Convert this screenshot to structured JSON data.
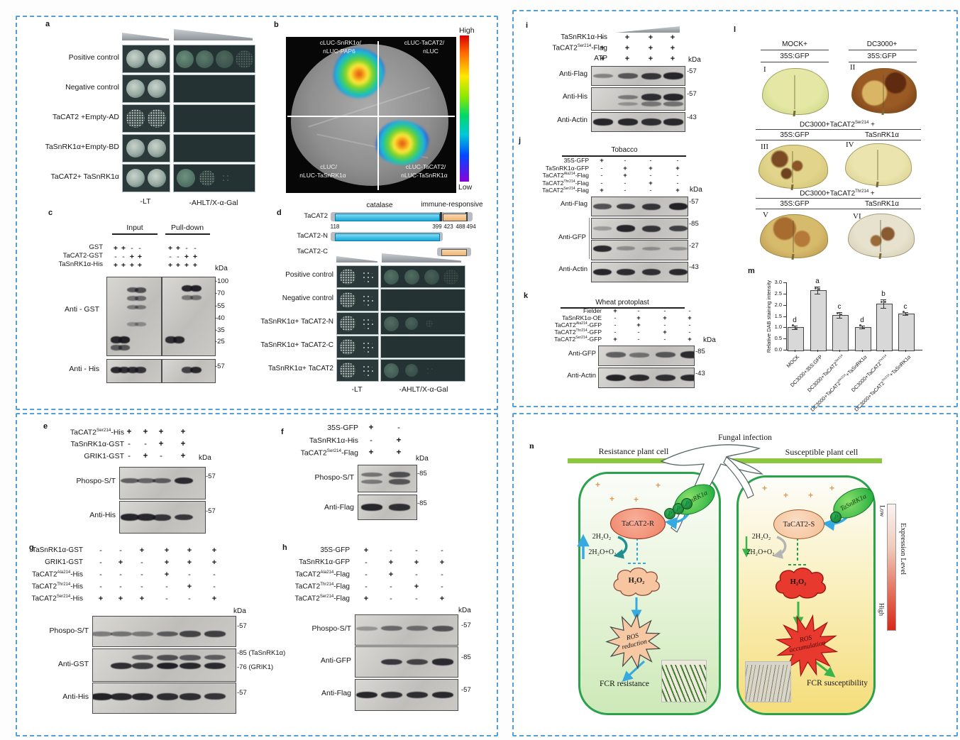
{
  "colors": {
    "box_border": "#54a0d4",
    "domain_blue": "#1fb4e8",
    "domain_orange": "#f3c88f",
    "heat_high": "#d9281a",
    "cell_green": "#2aa14b",
    "membrane_green": "#8dc63f",
    "arrow_blue": "#36a9e1",
    "arrow_green": "#39b54a"
  },
  "panel_a": {
    "letter": "a",
    "rows": [
      {
        "label": "Positive control",
        "lt": [
          "solid",
          "solid"
        ],
        "sel": [
          {
            "o": 0.78,
            "s": "solid"
          },
          {
            "o": 0.62,
            "s": "solid"
          },
          {
            "o": 0.46,
            "s": "solid"
          },
          {
            "o": 0.38,
            "s": "speck"
          }
        ]
      },
      {
        "label": "Negative control",
        "lt": [
          "solid",
          "solid"
        ],
        "sel": []
      },
      {
        "label": "TaCAT2 +Empty-AD",
        "lt": [
          "speck",
          "speck"
        ],
        "sel": []
      },
      {
        "label": "TaSnRK1α+Empty-BD",
        "lt": [
          "solid",
          "solid"
        ],
        "sel": []
      },
      {
        "label": "TaCAT2+ TaSnRK1α",
        "lt": [
          "solid",
          "solid"
        ],
        "sel": [
          {
            "o": 0.82,
            "s": "solid"
          },
          {
            "o": 0.6,
            "s": "speck"
          },
          {
            "o": 0.3,
            "s": "dots"
          }
        ]
      }
    ],
    "media": [
      "-LT",
      "-AHLT/X-α-Gal"
    ]
  },
  "panel_b": {
    "letter": "b",
    "quadrants": [
      {
        "lines": [
          "cLUC-SnRK1α/",
          "nLUC-PAP6"
        ],
        "signal": true
      },
      {
        "lines": [
          "cLUC-TaCAT2/",
          "nLUC"
        ],
        "signal": false
      },
      {
        "lines": [
          "cLUC/",
          "nLUC-TaSnRK1α"
        ],
        "signal": false
      },
      {
        "lines": [
          "cLUC-TaCAT2/",
          "nLUC-TaSnRK1α"
        ],
        "signal": true
      }
    ],
    "scale_high": "High",
    "scale_low": "Low"
  },
  "panel_c": {
    "letter": "c",
    "groups": [
      "Input",
      "Pull-down"
    ],
    "conditions": [
      {
        "label": "GST",
        "values": [
          "+",
          "+",
          "-",
          "-",
          "+",
          "+",
          "-",
          "-"
        ]
      },
      {
        "label": "TaCAT2-GST",
        "values": [
          "-",
          "-",
          "+",
          "+",
          "-",
          "-",
          "+",
          "+"
        ]
      },
      {
        "label": "TaSnRK1α-His",
        "values": [
          "+",
          "+",
          "+",
          "+",
          "+",
          "+",
          "+",
          "+"
        ]
      }
    ],
    "kda": "kDa",
    "blots": [
      "Anti - GST",
      "Anti - His"
    ],
    "markers": [
      "-100",
      "-70",
      "-55",
      "-40",
      "-35",
      "-25",
      "-57"
    ],
    "bands": [
      [
        {
          "y": 0.16,
          "l": [
            0,
            0,
            0.55,
            0.6
          ]
        },
        {
          "y": 0.27,
          "l": [
            0,
            0,
            0.35,
            0.4
          ]
        },
        {
          "y": 0.38,
          "l": [
            0,
            0,
            0.28,
            0.3
          ]
        },
        {
          "y": 0.6,
          "l": [
            0,
            0,
            0.1,
            0.14
          ]
        },
        {
          "y": 0.8,
          "l": [
            0.9,
            0.95,
            0,
            0
          ]
        },
        {
          "y": 0.9,
          "l": [
            0.5,
            0.55,
            0,
            0
          ]
        }
      ],
      [
        {
          "y": 0.14,
          "l": [
            0,
            0,
            0.9,
            0.95
          ]
        },
        {
          "y": 0.26,
          "l": [
            0,
            0,
            0.3,
            0.35
          ]
        },
        {
          "y": 0.8,
          "l": [
            0.85,
            0.9,
            0,
            0
          ]
        }
      ],
      [
        {
          "y": 0.45,
          "l": [
            0.9,
            0.85,
            0.85,
            0.8
          ]
        }
      ],
      [
        {
          "y": 0.45,
          "l": [
            0,
            0,
            0.7,
            0.9
          ]
        }
      ]
    ]
  },
  "panel_d": {
    "letter": "d",
    "domain_left": "catalase",
    "domain_right": "immune-responsive",
    "constructs": [
      "TaCAT2",
      "TaCAT2-N",
      "TaCAT2-C"
    ],
    "positions": [
      "118",
      "399",
      "423",
      "488",
      "494"
    ],
    "rows": [
      {
        "label": "Positive control",
        "lt": [
          "speck",
          "dots"
        ],
        "sel": [
          {
            "o": 0.55,
            "s": "solid"
          },
          {
            "o": 0.5,
            "s": "solid"
          },
          {
            "o": 0.4,
            "s": "solid"
          },
          {
            "o": 0.22,
            "s": "speck"
          }
        ]
      },
      {
        "label": "Negative control",
        "lt": [
          "speck",
          "dots"
        ],
        "sel": []
      },
      {
        "label": "TaSnRK1α+ TaCAT2-N",
        "lt": [
          "speck",
          "dots"
        ],
        "sel": [
          {
            "o": 0.5,
            "s": "solid"
          },
          {
            "o": 0.42,
            "s": "solid"
          },
          {
            "o": 0.2,
            "s": "speck"
          }
        ]
      },
      {
        "label": "TaSnRK1α+ TaCAT2-C",
        "lt": [
          "speck",
          "dots"
        ],
        "sel": []
      },
      {
        "label": "TaSnRK1α+ TaCAT2",
        "lt": [
          "speck",
          "dots"
        ],
        "sel": [
          {
            "o": 0.55,
            "s": "solid"
          },
          {
            "o": 0.38,
            "s": "solid"
          },
          {
            "o": 0.15,
            "s": "dots"
          }
        ]
      }
    ],
    "media": [
      "-LT",
      "-AHLT/X-α-Gal"
    ]
  },
  "panel_e": {
    "letter": "e",
    "kda": "kDa",
    "conditions": [
      {
        "label": "TaCAT2^Ser214^-His",
        "values": [
          "+",
          "+",
          "+",
          "+"
        ]
      },
      {
        "label": "TaSnRK1α-GST",
        "values": [
          "-",
          "-",
          "+",
          "+"
        ]
      },
      {
        "label": "GRIK1-GST",
        "values": [
          "-",
          "+",
          "-",
          "+"
        ]
      }
    ],
    "blots": [
      "Phospo-S/T",
      "Anti-His"
    ],
    "markers": [
      "-57",
      "-57"
    ],
    "bands": [
      [
        {
          "y": 0.42,
          "l": [
            0.5,
            0.45,
            0.5,
            0.88
          ]
        }
      ],
      [
        {
          "y": 0.5,
          "l": [
            0.92,
            0.9,
            0.8,
            0.78
          ]
        }
      ]
    ]
  },
  "panel_f": {
    "letter": "f",
    "kda": "kDa",
    "conditions": [
      {
        "label": "35S-GFP",
        "values": [
          "+",
          "-"
        ]
      },
      {
        "label": "TaSnRK1α-His",
        "values": [
          "-",
          "+"
        ]
      },
      {
        "label": "TaCAT2^Ser214^-Flag",
        "values": [
          "+",
          "+"
        ]
      }
    ],
    "blots": [
      "Phospo-S/T",
      "Anti-Flag"
    ],
    "markers": [
      "-85",
      "-85"
    ],
    "bands": [
      [
        {
          "y": 0.35,
          "l": [
            0.35,
            0.6
          ]
        },
        {
          "y": 0.62,
          "l": [
            0.3,
            0.55
          ]
        }
      ],
      [
        {
          "y": 0.5,
          "l": [
            0.92,
            0.85
          ]
        }
      ]
    ]
  },
  "panel_g": {
    "letter": "g",
    "kda": "kDa",
    "conditions": [
      {
        "label": "TaSnRK1α-GST",
        "values": [
          "-",
          "-",
          "+",
          "+",
          "+",
          "+"
        ]
      },
      {
        "label": "GRIK1-GST",
        "values": [
          "-",
          "+",
          "-",
          "+",
          "+",
          "+"
        ]
      },
      {
        "label": "TaCAT2^Ala214^-His",
        "values": [
          "-",
          "-",
          "-",
          "+",
          "-",
          "-"
        ]
      },
      {
        "label": "TaCAT2^Thr214^-His",
        "values": [
          "-",
          "-",
          "-",
          "-",
          "+",
          "-"
        ]
      },
      {
        "label": "TaCAT2^Ser214^-His",
        "values": [
          "+",
          "+",
          "+",
          "-",
          "-",
          "+"
        ]
      }
    ],
    "blots": [
      "Phospo-S/T",
      "Anti-GST",
      "Anti-His"
    ],
    "markers": [
      "-57",
      "-85 (TaSnRK1α)",
      "-76 (GRIK1)",
      "-57"
    ],
    "bands": [
      [
        {
          "y": 0.58,
          "l": [
            0.3,
            0.35,
            0.3,
            0.5,
            0.68,
            0.72
          ]
        }
      ],
      [
        {
          "y": 0.52,
          "l": [
            0,
            0.85,
            0.75,
            0.95,
            0.9,
            0.88
          ]
        },
        {
          "y": 0.26,
          "l": [
            0,
            0,
            0.5,
            0.6,
            0.55,
            0.5
          ]
        }
      ],
      [
        {
          "y": 0.45,
          "l": [
            0.95,
            0.9,
            0.9,
            0.85,
            0.85,
            0.8
          ]
        }
      ]
    ]
  },
  "panel_h": {
    "letter": "h",
    "kda": "kDa",
    "conditions": [
      {
        "label": "35S-GFP",
        "values": [
          "+",
          "-",
          "-",
          "-"
        ]
      },
      {
        "label": "TaSnRK1α-GFP",
        "values": [
          "-",
          "+",
          "+",
          "+"
        ]
      },
      {
        "label": "TaCAT2^Ala214^-Flag",
        "values": [
          "-",
          "+",
          "-",
          "-"
        ]
      },
      {
        "label": "TaCAT2^Thr214^-Flag",
        "values": [
          "-",
          "-",
          "+",
          "-"
        ]
      },
      {
        "label": "TaCAT2^Ser214^-Flag",
        "values": [
          "+",
          "-",
          "-",
          "+"
        ]
      }
    ],
    "blots": [
      "Phospo-S/T",
      "Anti-GFP",
      "Anti-Flag"
    ],
    "markers": [
      "-57",
      "-85",
      "-57"
    ],
    "bands": [
      [
        {
          "y": 0.45,
          "l": [
            0.12,
            0.42,
            0.38,
            0.58
          ]
        }
      ],
      [
        {
          "y": 0.5,
          "l": [
            0,
            0.78,
            0.68,
            0.88
          ]
        }
      ],
      [
        {
          "y": 0.5,
          "l": [
            0.92,
            0.85,
            0.85,
            0.9
          ]
        }
      ]
    ]
  },
  "panel_i": {
    "letter": "i",
    "kda": "kDa",
    "conditions": [
      {
        "label": "TaSnRK1α-His",
        "values": [
          "-",
          "+",
          "+",
          "+"
        ]
      },
      {
        "label": "TaCAT2^Ser214^-Flag",
        "values": [
          "+",
          "+",
          "+",
          "+"
        ]
      },
      {
        "label": "ATP",
        "values": [
          "+",
          "+",
          "+",
          "+"
        ]
      }
    ],
    "blots": [
      "Anti-Flag",
      "Anti-His",
      "Anti-Actin"
    ],
    "markers": [
      "-57",
      "-57",
      "-43"
    ],
    "bands": [
      [
        {
          "y": 0.5,
          "l": [
            0.25,
            0.55,
            0.8,
            0.92
          ]
        }
      ],
      [
        {
          "y": 0.42,
          "l": [
            0,
            0.3,
            0.85,
            0.92
          ]
        },
        {
          "y": 0.72,
          "l": [
            0,
            0.1,
            0.3,
            0.35
          ]
        }
      ],
      [
        {
          "y": 0.5,
          "l": [
            0.92,
            0.9,
            0.85,
            0.9
          ]
        }
      ]
    ]
  },
  "panel_j": {
    "letter": "j",
    "kda": "kDa",
    "header": "Tobacco",
    "conditions": [
      {
        "label": "35S-GFP",
        "values": [
          "+",
          "-",
          "-",
          "-"
        ]
      },
      {
        "label": "TaSnRK1α-GFP",
        "values": [
          "-",
          "+",
          "+",
          "+"
        ]
      },
      {
        "label": "TaCAT2^Ala214^-Flag",
        "values": [
          "-",
          "+",
          "-",
          "-"
        ]
      },
      {
        "label": "TaCAT2^Thr214^-Flag",
        "values": [
          "-",
          "-",
          "+",
          "-"
        ]
      },
      {
        "label": "TaCAT2^Ser214^-Flag",
        "values": [
          "+",
          "-",
          "-",
          "+"
        ]
      }
    ],
    "blots": [
      "Anti-Flag",
      "Anti-GFP",
      "Anti-Actin"
    ],
    "markers": [
      "-57",
      "-85",
      "-27",
      "-43"
    ],
    "bands": [
      [
        {
          "y": 0.5,
          "l": [
            0.6,
            0.75,
            0.8,
            0.95
          ]
        }
      ],
      [
        {
          "y": 0.5,
          "l": [
            0.08,
            0.92,
            0.8,
            0.72
          ]
        }
      ],
      [
        {
          "y": 0.42,
          "l": [
            0.9,
            0.15,
            0.12,
            0.12
          ]
        }
      ],
      [
        {
          "y": 0.5,
          "l": [
            0.92,
            0.88,
            0.85,
            0.9
          ]
        }
      ]
    ]
  },
  "panel_k": {
    "letter": "k",
    "kda": "kDa",
    "header": "Wheat protoplast",
    "conditions": [
      {
        "label": "Fielder",
        "values": [
          "+",
          "-",
          "-",
          "-"
        ]
      },
      {
        "label": "TaSnRK1α-OE",
        "values": [
          "-",
          "+",
          "+",
          "+"
        ]
      },
      {
        "label": "TaCAT2^Ala214^-GFP",
        "values": [
          "-",
          "+",
          "-",
          "-"
        ]
      },
      {
        "label": "TaCAT2^Thr214^-GFP",
        "values": [
          "-",
          "-",
          "+",
          "-"
        ]
      },
      {
        "label": "TaCAT2^Ser214^-GFP",
        "values": [
          "+",
          "-",
          "-",
          "+"
        ]
      }
    ],
    "blots": [
      "Anti-GFP",
      "Anti-Actin"
    ],
    "markers": [
      "-85",
      "-43"
    ],
    "bands": [
      [
        {
          "y": 0.45,
          "l": [
            0.5,
            0.35,
            0.55,
            0.88
          ]
        }
      ],
      [
        {
          "y": 0.5,
          "l": [
            0.95,
            0.9,
            0.85,
            0.9
          ]
        }
      ]
    ]
  },
  "panel_l": {
    "letter": "l",
    "groups": [
      {
        "headers": [
          "MOCK+",
          "DC3000+"
        ],
        "subheaders": [
          "35S:GFP",
          "35S:GFP"
        ],
        "leaves": [
          {
            "num": "I",
            "base1": "#e4e8a4",
            "base2": "#c6d27f",
            "spots": []
          },
          {
            "num": "II",
            "base1": "#9a5a24",
            "base2": "#6e3816",
            "spots": [
              [
                35,
                55,
                24,
                "#d9b666"
              ],
              [
                68,
                32,
                18,
                "#5e2a10"
              ]
            ]
          }
        ]
      },
      {
        "header": "DC3000+TaCAT2^Ser214^ +",
        "subheaders": [
          "35S:GFP",
          "TaSnRK1α"
        ],
        "leaves": [
          {
            "num": "III",
            "base1": "#e2d58b",
            "base2": "#ccbc6d",
            "spots": [
              [
                30,
                32,
                13,
                "#7a4a22"
              ],
              [
                56,
                48,
                10,
                "#8a5526"
              ],
              [
                40,
                66,
                9,
                "#6e4220"
              ]
            ]
          },
          {
            "num": "IV",
            "base1": "#ebe4ae",
            "base2": "#d5cc89",
            "spots": []
          }
        ]
      },
      {
        "header": "DC3000+TaCAT2^Thr214^ +",
        "subheaders": [
          "35S:GFP",
          "TaSnRK1α"
        ],
        "leaves": [
          {
            "num": "V",
            "base1": "#d7bb6d",
            "base2": "#b79347",
            "spots": [
              [
                36,
                32,
                20,
                "#a86c30"
              ],
              [
                62,
                56,
                15,
                "#b5793a"
              ]
            ]
          },
          {
            "num": "VI",
            "base1": "#e7e2ce",
            "base2": "#d1caae",
            "spots": [
              [
                60,
                46,
                13,
                "#8a5a30"
              ],
              [
                42,
                62,
                10,
                "#9a6a38"
              ]
            ]
          }
        ]
      }
    ]
  },
  "panel_m": {
    "letter": "m"
  },
  "chart_data": {
    "type": "bar",
    "title": "",
    "xlabel": "",
    "ylabel": "Relative DAB staining intensity",
    "categories": [
      "MOCK",
      "DC3000+35S:GFP",
      "DC3000+TaCAT2^Ser214^",
      "DC3000+TaCAT2^Ser214^+TaSnRK1α",
      "DC3000+TaCAT2^Thr214^",
      "DC3000+TaCAT2^Thr214^+TaSnRK1α"
    ],
    "values": [
      1.0,
      2.65,
      1.55,
      1.02,
      2.05,
      1.6
    ],
    "errors": [
      0.08,
      0.15,
      0.12,
      0.06,
      0.18,
      0.06
    ],
    "sig_letters": [
      "d",
      "a",
      "c",
      "d",
      "b",
      "c"
    ],
    "ylim": [
      0,
      3.0
    ],
    "yticks": [
      "0.0",
      "0.5",
      "1.0",
      "1.5",
      "2.0",
      "2.5",
      "3.0"
    ],
    "grid": false,
    "bar_color": "#d8d8d8"
  },
  "panel_n": {
    "letter": "n",
    "fungal_infection": "Fungal infection",
    "resistance_title": "Resistance plant cell",
    "susceptible_title": "Susceptible plant cell",
    "kinase": "TaSnRK1α",
    "phospho": "P",
    "plus": "+",
    "cat_resistant": "TaCAT2-R",
    "cat_susceptible": "TaCAT2-S",
    "h2o2_double": "2H₂O₂",
    "water_oxygen": "2H₂O+O₂",
    "h2o2": "H₂O₂",
    "ros_r1": "ROS",
    "ros_r2": "reduction",
    "ros_a1": "ROS",
    "ros_a2": "accumulation",
    "fcr_resistance": "FCR resistance",
    "fcr_susceptibility": "FCR susceptibility",
    "scale_low": "Low",
    "scale_high": "High",
    "scale_label": "Expression Level"
  }
}
